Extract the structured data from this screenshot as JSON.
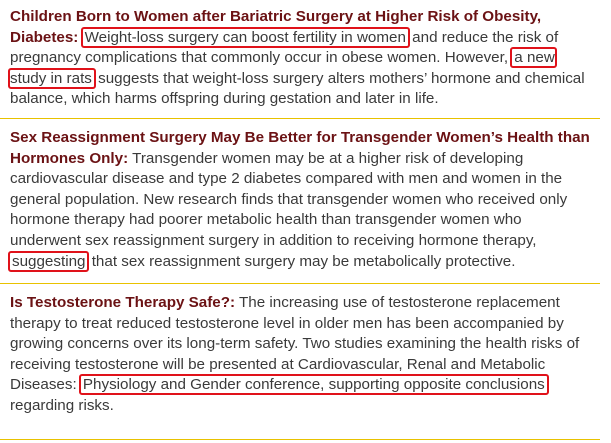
{
  "articles": [
    {
      "headline": "Children Born to Women after Bariatric Surgery at Higher Risk of Obesity, Diabetes:",
      "segments": [
        {
          "text": "Weight-loss surgery can boost fertility in women",
          "highlight": true
        },
        {
          "text": "and reduce the risk of pregnancy complications that commonly occur in obese women. However,",
          "highlight": false
        },
        {
          "text": "a new study in rats",
          "highlight": true
        },
        {
          "text": "suggests that weight-loss surgery alters mothers’ hormone and chemical balance, which harms offspring during gestation and later in life.",
          "highlight": false
        }
      ]
    },
    {
      "headline": "Sex Reassignment Surgery May Be Better for Transgender Women’s Health than Hormones Only:",
      "segments": [
        {
          "text": "Transgender women may be at a higher risk of developing cardiovascular disease and type 2 diabetes compared with men and women in the general population. New research finds that transgender women who received only hormone therapy had poorer metabolic health than transgender women who underwent sex reassignment surgery in addition to receiving hormone therapy,",
          "highlight": false
        },
        {
          "text": "suggesting",
          "highlight": true
        },
        {
          "text": "that sex reassignment surgery may be metabolically protective.",
          "highlight": false
        }
      ]
    },
    {
      "headline": "Is Testosterone Therapy Safe?:",
      "segments": [
        {
          "text": "The increasing use of testosterone replacement therapy to treat reduced testosterone level in older men has been accompanied by growing concerns over its long-term safety. Two studies examining the health risks of receiving testosterone will be presented at Cardiovascular, Renal and Metabolic Diseases:",
          "highlight": false
        },
        {
          "text": "Physiology and Gender conference, supporting opposite conclusions",
          "highlight": true
        },
        {
          "text": "regarding risks.",
          "highlight": false
        }
      ]
    }
  ],
  "colors": {
    "headline": "#6b1214",
    "body": "#3a3a3a",
    "highlight_box": "#e0121a",
    "divider": "#e8c200"
  }
}
